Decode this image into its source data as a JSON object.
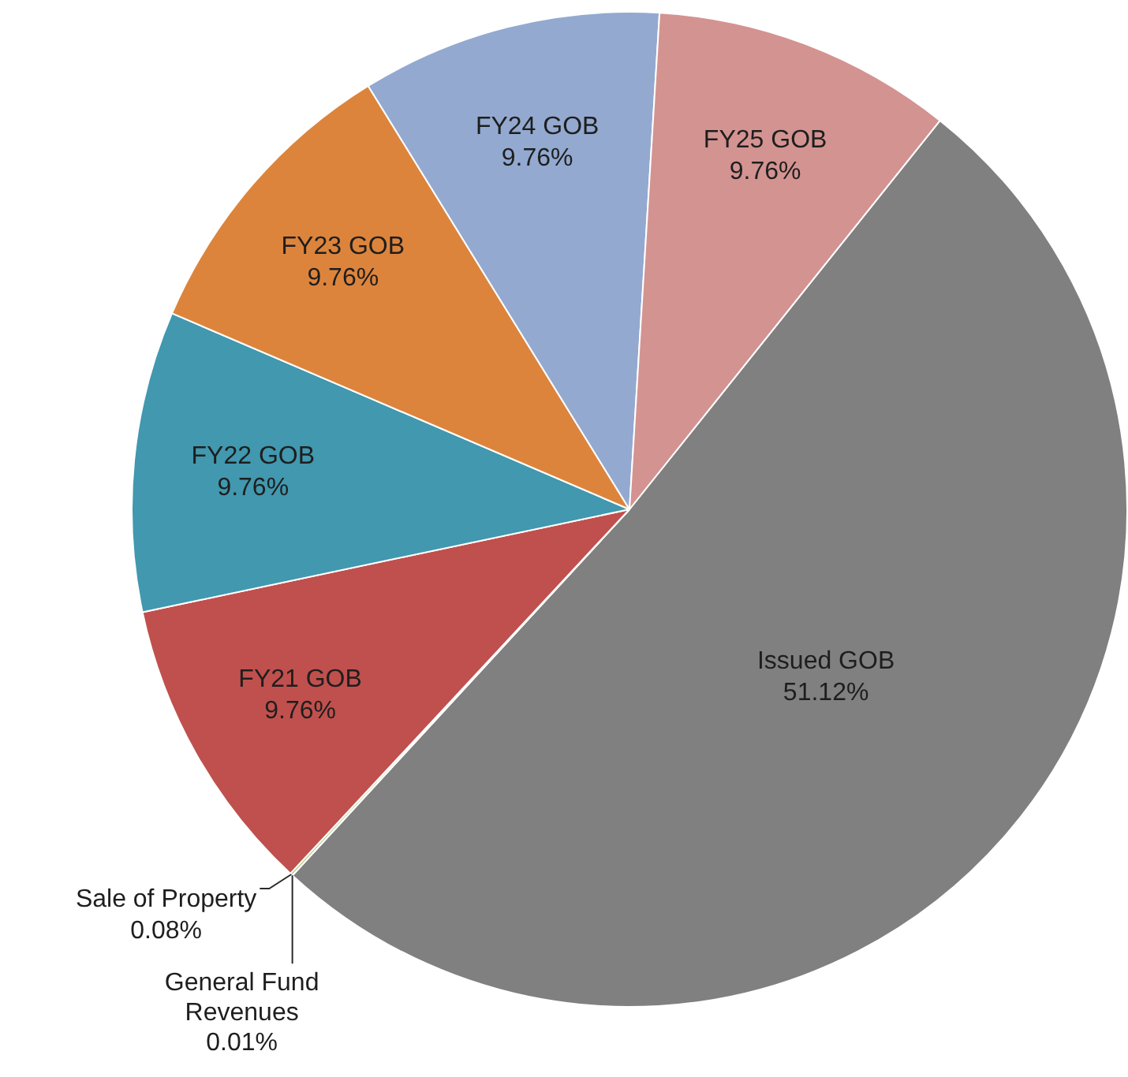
{
  "chart_data": {
    "type": "pie",
    "categories": [
      "Issued GOB",
      "General Fund Revenues",
      "Sale of Property",
      "FY21 GOB",
      "FY22 GOB",
      "FY23 GOB",
      "FY24 GOB",
      "FY25 GOB"
    ],
    "values": [
      51.12,
      0.01,
      0.08,
      9.76,
      9.76,
      9.76,
      9.76,
      9.76
    ],
    "colors": [
      "#808080",
      "#4f81bd",
      "#9bbb59",
      "#c0504d",
      "#4198af",
      "#dd843c",
      "#93a9d0",
      "#d39391"
    ],
    "value_labels": [
      "51.12%",
      "0.01%",
      "0.08%",
      "9.76%",
      "9.76%",
      "9.76%",
      "9.76%",
      "9.76%"
    ],
    "legend": false
  }
}
